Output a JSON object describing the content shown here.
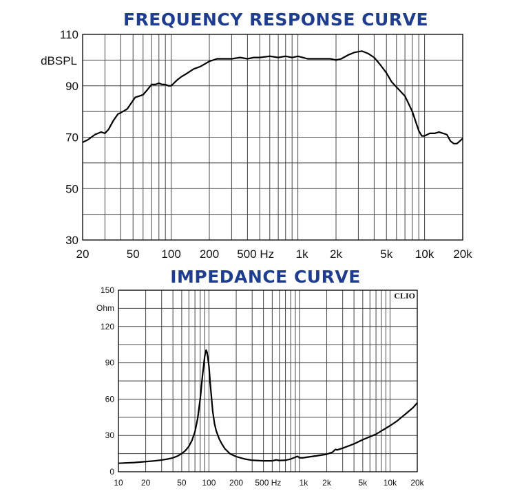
{
  "chart_data": [
    {
      "type": "line",
      "title": "FREQUENCY RESPONSE CURVE",
      "ylabel": "dBSPL",
      "xscale": "log",
      "xlim": [
        20,
        20000
      ],
      "ylim": [
        30,
        110
      ],
      "x_ticks": [
        20,
        50,
        100,
        200,
        500,
        1000,
        2000,
        5000,
        10000,
        20000
      ],
      "x_tick_labels": [
        "20",
        "50",
        "100",
        "200",
        "500 Hz",
        "1k",
        "2k",
        "5k",
        "10k",
        "20k"
      ],
      "y_ticks": [
        30,
        50,
        70,
        90,
        110
      ],
      "y_tick_labels": [
        "30",
        "50",
        "70",
        "90",
        "110"
      ],
      "grid": true,
      "series": [
        {
          "x": [
            20,
            22,
            25,
            28,
            30,
            32,
            35,
            38,
            40,
            45,
            48,
            52,
            56,
            60,
            65,
            70,
            75,
            80,
            85,
            90,
            95,
            100,
            110,
            120,
            130,
            150,
            170,
            200,
            230,
            260,
            300,
            350,
            400,
            450,
            500,
            600,
            700,
            800,
            900,
            1000,
            1200,
            1500,
            1800,
            2000,
            2200,
            2500,
            2800,
            3200,
            3600,
            4000,
            4500,
            5000,
            5500,
            6000,
            7000,
            8000,
            9000,
            9500,
            10000,
            11000,
            12000,
            13000,
            14000,
            15000,
            16000,
            17000,
            18000,
            19000,
            20000
          ],
          "y": [
            68,
            69,
            71,
            72,
            71.5,
            73,
            76.5,
            79,
            79.5,
            81,
            83,
            85.5,
            86,
            86.5,
            88.5,
            90.5,
            90.5,
            91,
            90.5,
            90.5,
            90,
            90,
            92,
            93.5,
            94.5,
            96.5,
            97.5,
            99.5,
            100.5,
            100.5,
            100.5,
            101,
            100.5,
            101,
            101,
            101.5,
            101,
            101.5,
            101,
            101.5,
            100.5,
            100.5,
            100.5,
            100,
            100.5,
            102,
            103,
            103.5,
            102.5,
            101,
            98,
            95,
            91.5,
            89.5,
            86,
            80,
            72.5,
            70.5,
            70.5,
            71.5,
            71.5,
            72,
            71.5,
            71,
            68.5,
            67.5,
            67.5,
            68.5,
            69.5
          ]
        }
      ]
    },
    {
      "type": "line",
      "title": "IMPEDANCE CURVE",
      "ylabel": "Ohm",
      "xscale": "log",
      "xlim": [
        10,
        20000
      ],
      "ylim": [
        0,
        150
      ],
      "x_ticks": [
        10,
        20,
        50,
        100,
        200,
        500,
        1000,
        2000,
        5000,
        10000,
        20000
      ],
      "x_tick_labels": [
        "10",
        "20",
        "50",
        "100",
        "200",
        "500 Hz",
        "1k",
        "2k",
        "5k",
        "10k",
        "20k"
      ],
      "y_ticks": [
        0,
        30,
        60,
        90,
        120,
        150
      ],
      "y_tick_labels": [
        "0",
        "30",
        "60",
        "90",
        "120",
        "150"
      ],
      "grid": true,
      "watermark": "CLIO",
      "series": [
        {
          "x": [
            10,
            15,
            20,
            25,
            30,
            35,
            40,
            45,
            50,
            55,
            60,
            65,
            70,
            75,
            80,
            85,
            90,
            93,
            95,
            97,
            100,
            103,
            107,
            110,
            115,
            120,
            130,
            140,
            150,
            170,
            200,
            250,
            300,
            400,
            500,
            550,
            600,
            700,
            800,
            900,
            950,
            1000,
            1100,
            1200,
            1500,
            2000,
            2300,
            2500,
            2600,
            3000,
            4000,
            5000,
            7000,
            10000,
            12000,
            15000,
            18000,
            20000
          ],
          "y": [
            7,
            7.6,
            8.4,
            9,
            9.7,
            10.5,
            11.5,
            13,
            15,
            17.5,
            21,
            26,
            33,
            44,
            60,
            80,
            96,
            100.5,
            99,
            95,
            87,
            74,
            60,
            50,
            40,
            34,
            27,
            22.5,
            19,
            15,
            12.5,
            10.5,
            9.5,
            9,
            9,
            9.8,
            9.3,
            9.5,
            10.5,
            12,
            12.8,
            11.5,
            11.5,
            12,
            13,
            14.5,
            16,
            18.5,
            18,
            19.5,
            23,
            26.5,
            31,
            38,
            42,
            48,
            53,
            57
          ]
        }
      ]
    }
  ]
}
